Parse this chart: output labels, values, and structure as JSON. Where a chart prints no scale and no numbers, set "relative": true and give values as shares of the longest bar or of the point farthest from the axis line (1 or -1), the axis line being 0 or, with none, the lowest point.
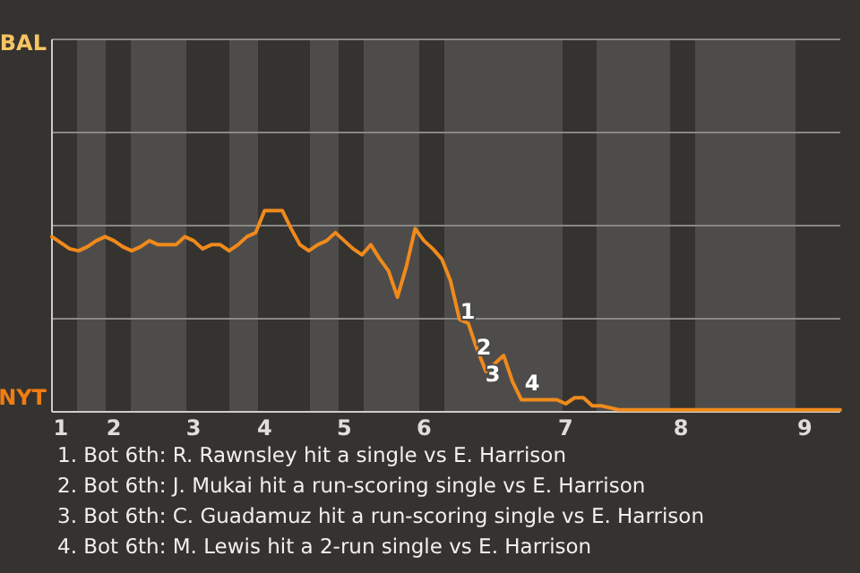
{
  "chart_data": {
    "type": "line",
    "relative": true,
    "categories": [
      null,
      "1",
      null,
      null,
      null,
      null,
      null,
      "2",
      null,
      null,
      null,
      null,
      null,
      null,
      null,
      null,
      "3",
      null,
      null,
      null,
      null,
      null,
      null,
      null,
      "4",
      null,
      null,
      null,
      null,
      null,
      null,
      null,
      null,
      "5",
      null,
      null,
      null,
      null,
      null,
      null,
      null,
      null,
      "6",
      null,
      null,
      null,
      null,
      null,
      null,
      null,
      null,
      null,
      null,
      null,
      null,
      null,
      null,
      null,
      "7",
      null,
      null,
      null,
      null,
      null,
      null,
      null,
      null,
      null,
      null,
      null,
      null,
      "8",
      null,
      null,
      null,
      null,
      null,
      null,
      null,
      null,
      null,
      null,
      null,
      null,
      null,
      "9",
      null,
      null,
      null,
      null
    ],
    "series": [
      {
        "color": "#f08a1c",
        "values": [
          0.87,
          0.84,
          0.81,
          0.8,
          0.82,
          0.85,
          0.87,
          0.85,
          0.82,
          0.8,
          0.82,
          0.85,
          0.83,
          0.83,
          0.83,
          0.87,
          0.85,
          0.81,
          0.83,
          0.83,
          0.8,
          0.83,
          0.87,
          0.89,
          1,
          1,
          1,
          0.91,
          0.83,
          0.8,
          0.83,
          0.85,
          0.89,
          0.85,
          0.81,
          0.78,
          0.83,
          0.76,
          0.7,
          0.57,
          0.72,
          0.91,
          0.85,
          0.81,
          0.76,
          0.65,
          0.46,
          0.44,
          0.31,
          0.2,
          0.24,
          0.28,
          0.15,
          0.06,
          0.06,
          0.06,
          0.06,
          0.06,
          0.04,
          0.07,
          0.07,
          0.03,
          0.03,
          0.02,
          0.01,
          0.01,
          0.01,
          0.01,
          0.01,
          0.01,
          0.01,
          0.01,
          0.01,
          0.01,
          0.01,
          0.01,
          0.01,
          0.01,
          0.01,
          0.01,
          0.01,
          0.01,
          0.01,
          0.01,
          0.01,
          0.01,
          0.01,
          0.01,
          0.01,
          0.01
        ]
      }
    ],
    "ref_lines": [
      {
        "axis": "y",
        "value": 0.4625,
        "color": "#8a8885"
      },
      {
        "axis": "y",
        "value": 0.925,
        "color": "#8a8885"
      },
      {
        "axis": "y",
        "value": 1.3875,
        "color": "#8a8885"
      }
    ],
    "annotations": [
      "BAL",
      "NYT",
      "1",
      "2",
      "3",
      "4",
      "1. Bot 6th: R. Rawnsley hit a single vs E. Harrison",
      "2. Bot 6th: J. Mukai hit a run-scoring single vs E. Harrison",
      "3. Bot 6th: C. Guadamuz hit a run-scoring single vs E. Harrison",
      "4. Bot 6th: M. Lewis hit a 2-run single vs E. Harrison"
    ]
  }
}
